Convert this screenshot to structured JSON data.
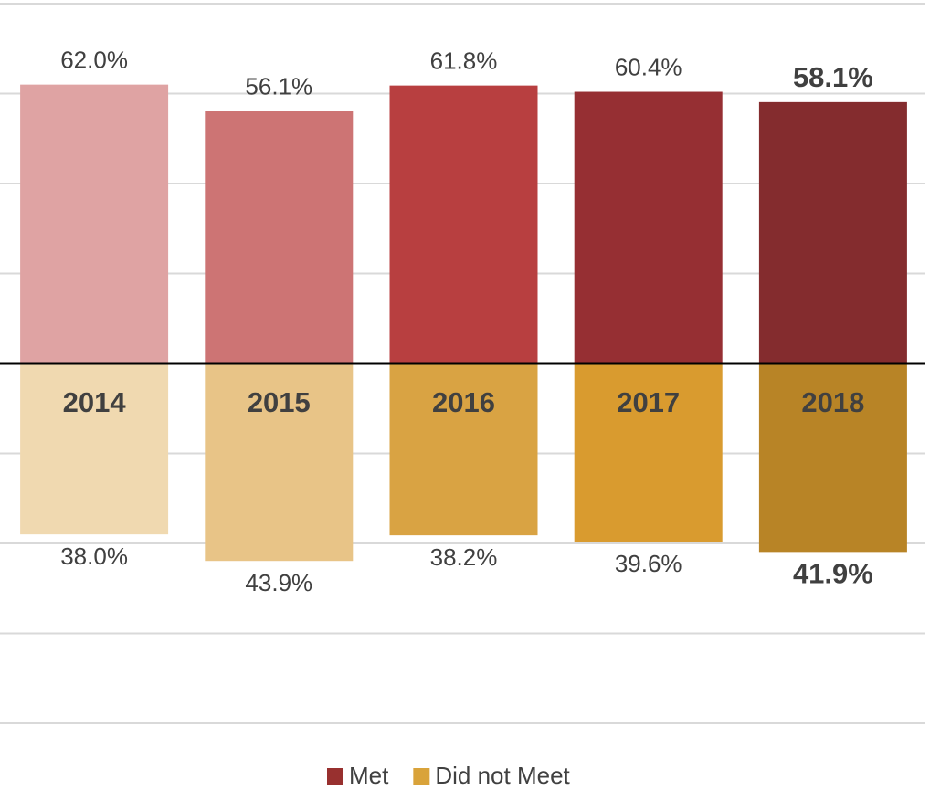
{
  "chart_data": {
    "type": "bar",
    "categories": [
      "2014",
      "2015",
      "2016",
      "2017",
      "2018"
    ],
    "series": [
      {
        "name": "Met",
        "color": "#98302f",
        "colors": [
          "#dfa3a3",
          "#cd7474",
          "#b83f40",
          "#962f33",
          "#842c2e"
        ],
        "values": [
          62.0,
          56.1,
          61.8,
          60.4,
          58.1
        ],
        "value_labels": [
          "62.0%",
          "56.1%",
          "61.8%",
          "60.4%",
          "58.1%"
        ]
      },
      {
        "name": "Did not Meet",
        "color": "#d9a33a",
        "colors": [
          "#f0d9b0",
          "#e8c487",
          "#d9a343",
          "#d99b2f",
          "#b88426"
        ],
        "values": [
          -38.0,
          -43.9,
          -38.2,
          -39.6,
          -41.9
        ],
        "value_labels": [
          "38.0%",
          "43.9%",
          "38.2%",
          "39.6%",
          "41.9%"
        ]
      }
    ],
    "highlight": "2018",
    "ylim": [
      -80,
      80
    ],
    "yticks": [
      -80,
      -60,
      -40,
      -20,
      0,
      20,
      40,
      60,
      80
    ],
    "grid": true,
    "legend": "bottom"
  }
}
